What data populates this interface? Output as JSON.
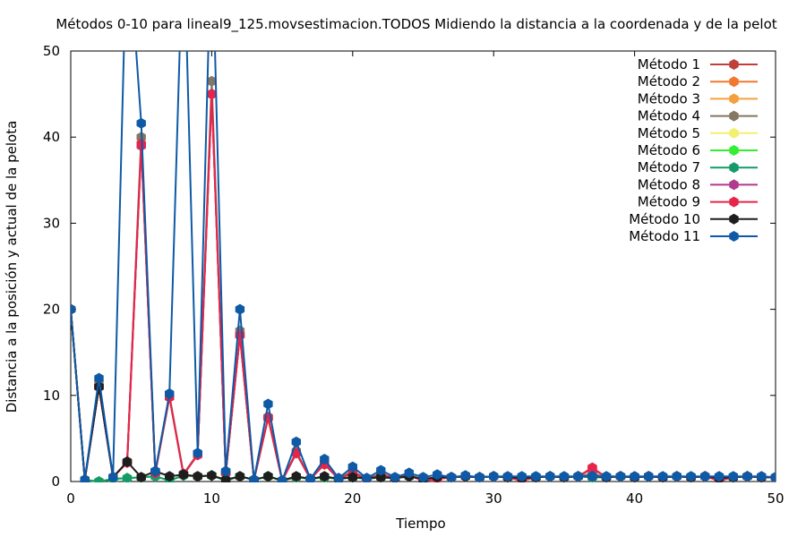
{
  "chart_data": {
    "type": "line",
    "title": "Métodos 0-10 para lineal9_125.movsestimacion.TODOS Midiendo la distancia a la coordenada y de la pelot",
    "xlabel": "Tiempo",
    "ylabel": "Distancia a la posición y actual de la pelota",
    "xlim": [
      0,
      50
    ],
    "ylim": [
      0,
      50
    ],
    "xticks": [
      "0",
      "10",
      "20",
      "30",
      "40",
      "50"
    ],
    "yticks": [
      "0",
      "10",
      "20",
      "30",
      "40",
      "50"
    ],
    "grid": false,
    "legend_position": "top-right",
    "x": [
      0,
      1,
      2,
      3,
      4,
      5,
      6,
      7,
      8,
      9,
      10,
      11,
      12,
      13,
      14,
      15,
      16,
      17,
      18,
      19,
      20,
      21,
      22,
      23,
      24,
      25,
      26,
      27,
      28,
      29,
      30,
      31,
      32,
      33,
      34,
      35,
      36,
      37,
      38,
      39,
      40,
      41,
      42,
      43,
      44,
      45,
      46,
      47,
      48,
      49,
      50
    ],
    "series": [
      {
        "name": "Método 1",
        "color": "#c0403a",
        "values": [
          20,
          0.2,
          11,
          0.5,
          2.2,
          39,
          1,
          9.8,
          0.8,
          3.1,
          45,
          1,
          17,
          0.2,
          7.4,
          0.1,
          3.3,
          0.3,
          2,
          0.3,
          1,
          0.3,
          0.8,
          0.4,
          0.7,
          0.1,
          0.3,
          0.5,
          0.6,
          0.5,
          0.6,
          0.5,
          0.1,
          0.5,
          0.6,
          0.5,
          0.6,
          1.5,
          0.5,
          0.6,
          0.5,
          0.6,
          0.5,
          0.6,
          0.5,
          0.6,
          0.1,
          0.5,
          0.6,
          0.5,
          0.5
        ]
      },
      {
        "name": "Método 2",
        "color": "#f07830",
        "values": [
          20,
          0.2,
          11,
          0.5,
          2.2,
          39,
          1,
          9.8,
          0.8,
          3.1,
          45,
          1,
          17,
          0.2,
          7.4,
          0.1,
          3.3,
          0.3,
          2,
          0.3,
          1,
          0.3,
          0.8,
          0.4,
          0.7,
          0.1,
          0.3,
          0.5,
          0.6,
          0.5,
          0.6,
          0.5,
          0.1,
          0.5,
          0.6,
          0.5,
          0.6,
          1.5,
          0.5,
          0.6,
          0.5,
          0.6,
          0.5,
          0.6,
          0.5,
          0.6,
          0.1,
          0.5,
          0.6,
          0.5,
          0.5
        ]
      },
      {
        "name": "Método 3",
        "color": "#f5a040",
        "values": [
          20,
          0.2,
          11,
          0.5,
          2.2,
          39,
          1,
          9.8,
          0.8,
          3.1,
          45,
          1,
          17,
          0.2,
          7.4,
          0.1,
          3.3,
          0.3,
          2,
          0.3,
          1,
          0.3,
          0.8,
          0.4,
          0.7,
          0.1,
          0.3,
          0.5,
          0.6,
          0.5,
          0.6,
          0.5,
          0.1,
          0.5,
          0.6,
          0.5,
          0.6,
          1.5,
          0.5,
          0.6,
          0.5,
          0.6,
          0.5,
          0.6,
          0.5,
          0.6,
          0.1,
          0.5,
          0.6,
          0.5,
          0.5
        ]
      },
      {
        "name": "Método 4",
        "color": "#857760",
        "values": [
          20,
          0.2,
          11.5,
          0.5,
          2.3,
          40,
          1.1,
          10,
          0.9,
          3.2,
          46.5,
          1.1,
          17.5,
          0.2,
          7.5,
          0.1,
          3.5,
          0.3,
          2.2,
          0.4,
          1.2,
          0.3,
          0.9,
          0.4,
          0.8,
          0.2,
          0.4,
          0.5,
          0.6,
          0.5,
          0.6,
          0.5,
          0.2,
          0.5,
          0.6,
          0.5,
          0.6,
          0.9,
          0.5,
          0.6,
          0.5,
          0.6,
          0.5,
          0.6,
          0.5,
          0.6,
          0.2,
          0.5,
          0.6,
          0.5,
          0.5
        ]
      },
      {
        "name": "Método 5",
        "color": "#f2f070",
        "values": [
          20,
          0.2,
          0,
          0.3,
          0.4,
          0.5,
          0.6,
          0.1,
          0.7,
          0.6,
          0.7,
          0.1,
          0.6,
          0.2,
          0.6,
          0.1,
          0.5,
          0.3,
          0.5,
          0.3,
          0.5,
          0.3,
          0.5,
          0.4,
          0.6,
          0.2,
          0.5,
          0.5,
          0.6,
          0.5,
          0.6,
          0.5,
          0.3,
          0.5,
          0.6,
          0.5,
          0.6,
          0.5,
          0.5,
          0.6,
          0.5,
          0.6,
          0.5,
          0.6,
          0.5,
          0.6,
          0.2,
          0.5,
          0.6,
          0.5,
          0.5
        ]
      },
      {
        "name": "Método 6",
        "color": "#33ee33",
        "values": [
          20,
          0.2,
          0,
          0.3,
          0.4,
          0.5,
          0.6,
          0.1,
          0.7,
          0.6,
          0.7,
          0.1,
          0.6,
          0.2,
          0.6,
          0.1,
          0.5,
          0.3,
          0.5,
          0.3,
          0.5,
          0.3,
          0.5,
          0.4,
          0.6,
          0.2,
          0.5,
          0.5,
          0.6,
          0.5,
          0.6,
          0.5,
          0.3,
          0.5,
          0.6,
          0.5,
          0.6,
          0.5,
          0.5,
          0.6,
          0.5,
          0.6,
          0.5,
          0.6,
          0.5,
          0.6,
          0.2,
          0.5,
          0.6,
          0.5,
          0.5
        ]
      },
      {
        "name": "Método 7",
        "color": "#159b6a",
        "values": [
          20,
          0.2,
          0,
          0.3,
          0.4,
          0.5,
          0.6,
          0.1,
          0.7,
          0.6,
          0.7,
          0.1,
          0.6,
          0.2,
          0.6,
          0.1,
          0.5,
          0.3,
          0.5,
          0.3,
          0.5,
          0.3,
          0.5,
          0.4,
          0.6,
          0.2,
          0.5,
          0.5,
          0.6,
          0.5,
          0.6,
          0.5,
          0.3,
          0.5,
          0.6,
          0.5,
          0.6,
          0.5,
          0.5,
          0.6,
          0.5,
          0.6,
          0.5,
          0.6,
          0.5,
          0.6,
          0.2,
          0.5,
          0.6,
          0.5,
          0.5
        ]
      },
      {
        "name": "Método 8",
        "color": "#b03a8e",
        "values": [
          20,
          0.2,
          11,
          0.5,
          2.2,
          39,
          1,
          9.8,
          0.8,
          3.1,
          45,
          1,
          17,
          0.2,
          7.4,
          0.1,
          3.3,
          0.3,
          2,
          0.3,
          1,
          0.3,
          0.8,
          0.4,
          0.7,
          0.1,
          0.3,
          0.5,
          0.6,
          0.5,
          0.6,
          0.5,
          0.1,
          0.5,
          0.6,
          0.5,
          0.6,
          1.5,
          0.5,
          0.6,
          0.5,
          0.6,
          0.5,
          0.6,
          0.5,
          0.6,
          0.1,
          0.5,
          0.6,
          0.5,
          0.5
        ]
      },
      {
        "name": "Método 9",
        "color": "#e5254a",
        "values": [
          20,
          0.2,
          11,
          0.5,
          2.2,
          39.2,
          1,
          9.8,
          0.8,
          3.1,
          45,
          1,
          17,
          0.2,
          7.4,
          0.1,
          3.3,
          0.3,
          2,
          0.3,
          1,
          0.3,
          0.8,
          0.4,
          0.7,
          0.1,
          0.3,
          0.5,
          0.6,
          0.5,
          0.6,
          0.5,
          0.1,
          0.5,
          0.6,
          0.5,
          0.6,
          1.6,
          0.5,
          0.6,
          0.5,
          0.6,
          0.5,
          0.6,
          0.5,
          0.6,
          0.1,
          0.5,
          0.6,
          0.5,
          0.5
        ]
      },
      {
        "name": "Método 10",
        "color": "#1e1e1e",
        "values": [
          20,
          0.2,
          11,
          0.5,
          2.3,
          0.5,
          1.2,
          0.6,
          0.8,
          0.6,
          0.7,
          0.2,
          0.6,
          0.2,
          0.6,
          0.1,
          0.6,
          0.3,
          0.6,
          0.3,
          0.5,
          0.4,
          0.5,
          0.4,
          0.6,
          0.3,
          0.5,
          0.5,
          0.6,
          0.5,
          0.6,
          0.5,
          0.4,
          0.5,
          0.6,
          0.5,
          0.6,
          0.6,
          0.5,
          0.6,
          0.5,
          0.6,
          0.5,
          0.6,
          0.5,
          0.6,
          0.4,
          0.5,
          0.6,
          0.5,
          0.5
        ]
      },
      {
        "name": "Método 11",
        "color": "#0e5aa6",
        "values": [
          20,
          0.2,
          12,
          0.5,
          65,
          41.6,
          1.2,
          10.2,
          65,
          3.3,
          65,
          1.2,
          20,
          0.2,
          9,
          0.1,
          4.6,
          0.3,
          2.6,
          0.4,
          1.7,
          0.4,
          1.3,
          0.5,
          1,
          0.5,
          0.8,
          0.5,
          0.7,
          0.5,
          0.6,
          0.6,
          0.6,
          0.6,
          0.6,
          0.6,
          0.6,
          0.6,
          0.6,
          0.6,
          0.6,
          0.6,
          0.6,
          0.6,
          0.6,
          0.6,
          0.6,
          0.6,
          0.6,
          0.6,
          0.5
        ]
      }
    ]
  }
}
